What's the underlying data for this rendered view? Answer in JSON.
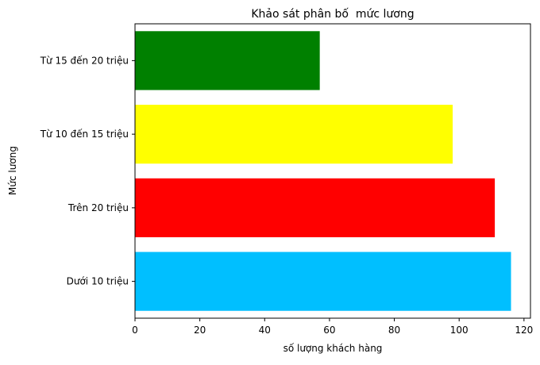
{
  "chart_data": {
    "type": "bar",
    "orientation": "horizontal",
    "title": "Khảo sát phân bố  mức lương",
    "xlabel": "số lượng khách hàng",
    "ylabel": "Mức lương",
    "categories": [
      "Dưới 10 triệu",
      "Trên 20 triệu",
      "Từ 10 đến 15 triệu",
      "Từ 15 đến 20 triệu"
    ],
    "values": [
      116,
      111,
      98,
      57
    ],
    "colors": [
      "#00bfff",
      "#ff0000",
      "#ffff00",
      "#008000"
    ],
    "xlim": [
      0,
      122
    ],
    "xticks": [
      0,
      20,
      40,
      60,
      80,
      100,
      120
    ],
    "grid": false,
    "legend": "none"
  }
}
